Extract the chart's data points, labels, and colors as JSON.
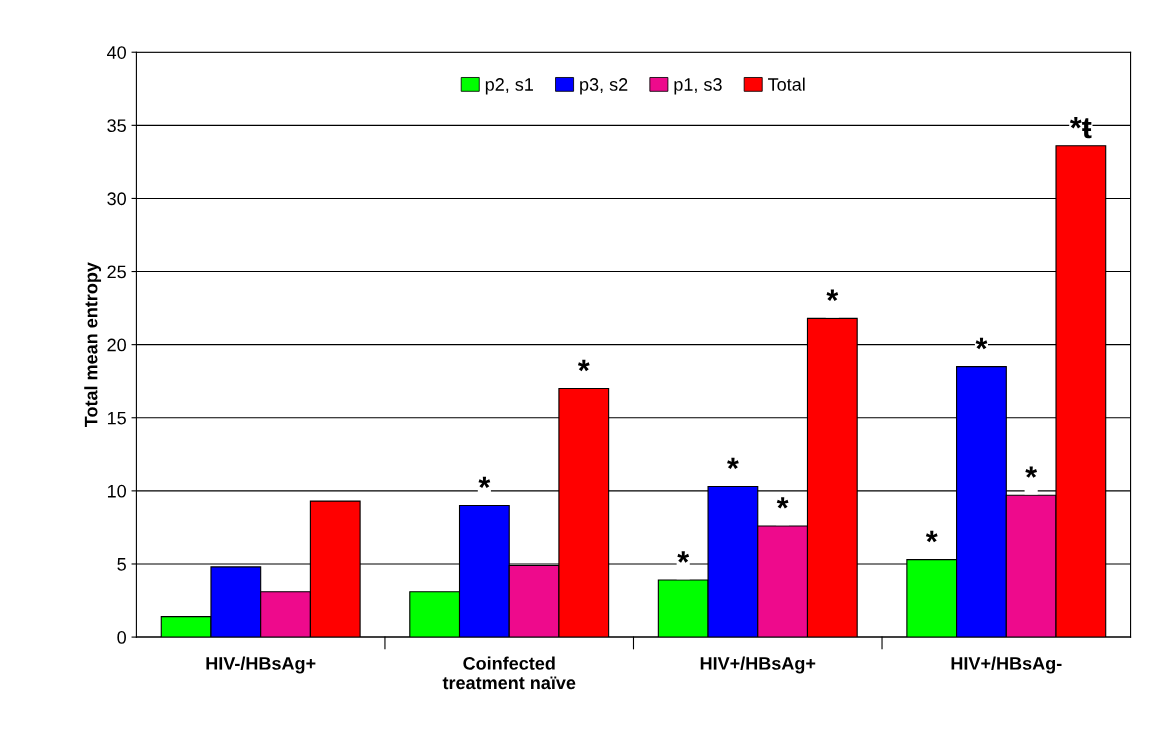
{
  "chart_data": {
    "type": "bar",
    "ylabel": "Total mean entropy",
    "categories": [
      "HIV-/HBsAg+",
      "Coinfected\ntreatment naïve",
      "HIV+/HBsAg+",
      "HIV+/HBsAg-"
    ],
    "series": [
      {
        "name": "p2, s1",
        "color": "#00ff00",
        "values": [
          1.4,
          3.1,
          3.9,
          5.3
        ],
        "value_labels": [
          null,
          null,
          "*",
          "*"
        ]
      },
      {
        "name": "p3, s2",
        "color": "#0000ff",
        "values": [
          4.8,
          9.0,
          10.3,
          18.5
        ],
        "value_labels": [
          null,
          "*",
          "*",
          "*"
        ]
      },
      {
        "name": "p1, s3",
        "color": "#ee0a8c",
        "values": [
          3.1,
          4.9,
          7.6,
          9.7
        ],
        "value_labels": [
          null,
          null,
          "*",
          "*"
        ]
      },
      {
        "name": "Total",
        "color": "#ff0000",
        "values": [
          9.3,
          17.0,
          21.8,
          33.6
        ],
        "value_labels": [
          null,
          "*",
          "*",
          "*ŧ"
        ]
      }
    ],
    "ylim": [
      0,
      40
    ],
    "yticks": [
      0,
      5,
      10,
      15,
      20,
      25,
      30,
      35,
      40
    ],
    "grid": "y",
    "legend": "top"
  }
}
